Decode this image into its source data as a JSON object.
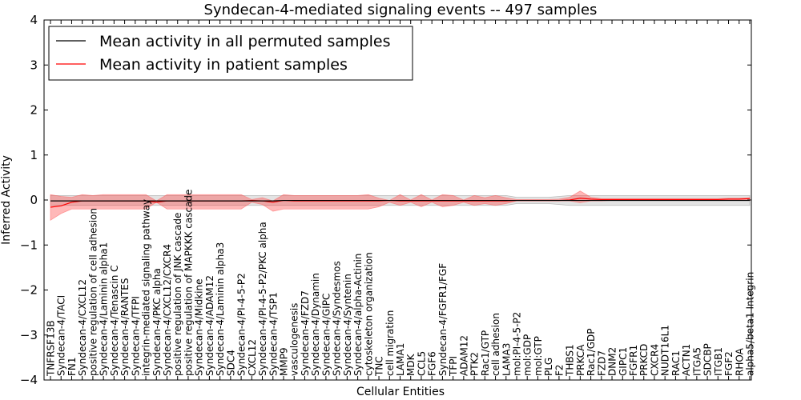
{
  "chart_data": {
    "type": "line",
    "title": "Syndecan-4-mediated signaling events -- 497 samples",
    "xlabel": "Cellular Entities",
    "ylabel": "Inferred Activity",
    "ylim": [
      -4,
      4
    ],
    "yticks": [
      {
        "value": 4,
        "label": "4"
      },
      {
        "value": 3,
        "label": "3"
      },
      {
        "value": 2,
        "label": "2"
      },
      {
        "value": 1,
        "label": "1"
      },
      {
        "value": 0,
        "label": "0"
      },
      {
        "value": -1,
        "label": "−1"
      },
      {
        "value": -2,
        "label": "−2"
      },
      {
        "value": -3,
        "label": "−3"
      },
      {
        "value": -4,
        "label": "−4"
      }
    ],
    "legend": {
      "placement": "top-left",
      "entries": [
        {
          "label": "Mean activity in all permuted samples",
          "color": "#000000"
        },
        {
          "label": "Mean activity in patient samples",
          "color": "#ff0000"
        }
      ]
    },
    "categories": [
      "TNFRSF13B",
      "Syndecan-4/TACI",
      "FN1",
      "Syndecan-4/CXCL12",
      "positive regulation of cell adhesion",
      "Syndecan-4/Laminin alpha1",
      "Syndecan-4/Tenascin C",
      "Syndecan-4/RANTES",
      "Syndecan-4/TFPI",
      "integrin-mediated signaling pathway",
      "Syndecan-4/PKC alpha",
      "Syndecan-4/CXCL12/CXCR4",
      "positive regulation of JNK cascade",
      "positive regulation of MAPKKK cascade",
      "Syndecan-4/Midkine",
      "Syndecan-4/ADAM12",
      "Syndecan-4/Laminin alpha3",
      "SDC4",
      "Syndecan-4/PI-4-5-P2",
      "CXCL12",
      "Syndecan-4/PI-4-5-P2/PKC alpha",
      "Syndecan-4/TSP1",
      "MMP9",
      "vasculogenesis",
      "Syndecan-4/FZD7",
      "Syndecan-4/Dynamin",
      "Syndecan-4/GIPC",
      "Syndecan-4/Syndesmos",
      "Syndecan-4/Syntenin",
      "Syndecan-4/alpha-Actinin",
      "cytoskeleton organization",
      "TNC",
      "cell migration",
      "LAMA1",
      "MDK",
      "CCL5",
      "FGF6",
      "Syndecan-4/FGFR1/FGF",
      "TFPI",
      "ADAM12",
      "PTK2",
      "Rac1/GTP",
      "cell adhesion",
      "LAMA3",
      "mol:PI-4-5-P2",
      "mol:GDP",
      "mol:GTP",
      "PLG",
      "F2",
      "THBS1",
      "PRKCA",
      "Rac1/GDP",
      "FZD7",
      "DNM2",
      "GIPC1",
      "FGFR1",
      "PRKCD",
      "CXCR4",
      "NUDT16L1",
      "RAC1",
      "ACTN1",
      "ITGA5",
      "SDCBP",
      "ITGB1",
      "FGF2",
      "RHOA",
      "alpha5/beta1 Integrin"
    ],
    "series": [
      {
        "name": "Mean activity in all permuted samples",
        "color": "#000000",
        "values": [
          -0.02,
          -0.02,
          -0.02,
          -0.02,
          -0.02,
          -0.02,
          -0.02,
          -0.02,
          -0.02,
          -0.02,
          -0.02,
          -0.02,
          -0.02,
          -0.02,
          -0.02,
          -0.02,
          -0.02,
          -0.02,
          -0.02,
          -0.02,
          -0.02,
          -0.02,
          -0.01,
          -0.01,
          -0.01,
          -0.01,
          -0.01,
          -0.01,
          -0.01,
          -0.01,
          -0.01,
          -0.01,
          -0.01,
          -0.01,
          -0.01,
          -0.01,
          -0.01,
          -0.01,
          -0.01,
          -0.01,
          -0.01,
          -0.01,
          -0.01,
          -0.01,
          -0.01,
          -0.01,
          -0.01,
          -0.01,
          -0.01,
          -0.01,
          -0.01,
          -0.01,
          -0.01,
          -0.01,
          -0.01,
          -0.01,
          -0.01,
          -0.01,
          -0.01,
          -0.01,
          -0.01,
          -0.01,
          -0.01,
          -0.01,
          -0.01,
          -0.01,
          -0.01
        ],
        "band_low": [
          -0.12,
          -0.12,
          -0.12,
          -0.12,
          -0.12,
          -0.12,
          -0.12,
          -0.12,
          -0.12,
          -0.12,
          -0.12,
          -0.12,
          -0.12,
          -0.12,
          -0.12,
          -0.12,
          -0.12,
          -0.12,
          -0.12,
          -0.12,
          -0.12,
          -0.12,
          -0.12,
          -0.12,
          -0.12,
          -0.12,
          -0.12,
          -0.12,
          -0.12,
          -0.12,
          -0.12,
          -0.12,
          -0.12,
          -0.12,
          -0.12,
          -0.12,
          -0.12,
          -0.12,
          -0.12,
          -0.12,
          -0.12,
          -0.12,
          -0.12,
          -0.12,
          -0.08,
          -0.08,
          -0.08,
          -0.08,
          -0.1,
          -0.12,
          -0.12,
          -0.12,
          -0.12,
          -0.12,
          -0.12,
          -0.12,
          -0.12,
          -0.12,
          -0.12,
          -0.12,
          -0.12,
          -0.12,
          -0.12,
          -0.12,
          -0.12,
          -0.12,
          -0.12
        ],
        "band_high": [
          0.1,
          0.1,
          0.1,
          0.1,
          0.1,
          0.1,
          0.1,
          0.1,
          0.1,
          0.1,
          0.1,
          0.1,
          0.1,
          0.1,
          0.1,
          0.1,
          0.1,
          0.1,
          0.1,
          0.1,
          0.1,
          0.1,
          0.1,
          0.1,
          0.1,
          0.1,
          0.1,
          0.1,
          0.1,
          0.1,
          0.1,
          0.1,
          0.1,
          0.1,
          0.1,
          0.1,
          0.1,
          0.1,
          0.1,
          0.1,
          0.1,
          0.1,
          0.1,
          0.1,
          0.06,
          0.06,
          0.06,
          0.06,
          0.08,
          0.1,
          0.1,
          0.1,
          0.1,
          0.1,
          0.1,
          0.1,
          0.1,
          0.1,
          0.1,
          0.1,
          0.1,
          0.1,
          0.1,
          0.1,
          0.1,
          0.1,
          0.1
        ]
      },
      {
        "name": "Mean activity in patient samples",
        "color": "#ff0000",
        "values": [
          -0.16,
          -0.13,
          -0.05,
          -0.02,
          -0.02,
          -0.02,
          -0.02,
          -0.02,
          -0.02,
          -0.02,
          -0.05,
          -0.02,
          -0.02,
          -0.02,
          -0.02,
          -0.02,
          -0.02,
          -0.02,
          -0.02,
          -0.01,
          -0.02,
          -0.05,
          -0.01,
          -0.02,
          -0.02,
          -0.02,
          -0.02,
          -0.02,
          -0.02,
          -0.02,
          -0.02,
          -0.02,
          -0.01,
          -0.02,
          -0.02,
          -0.02,
          -0.02,
          -0.02,
          -0.02,
          -0.02,
          -0.02,
          -0.02,
          -0.02,
          -0.02,
          -0.01,
          -0.01,
          -0.01,
          -0.01,
          -0.01,
          0.0,
          0.04,
          0.02,
          0.01,
          0.01,
          0.01,
          0.01,
          0.01,
          0.01,
          0.01,
          0.01,
          0.01,
          0.01,
          0.01,
          0.01,
          0.02,
          0.02,
          0.03
        ],
        "band_low": [
          -0.45,
          -0.3,
          -0.2,
          -0.2,
          -0.2,
          -0.2,
          -0.2,
          -0.2,
          -0.2,
          -0.2,
          -0.05,
          -0.2,
          -0.2,
          -0.2,
          -0.2,
          -0.2,
          -0.2,
          -0.2,
          -0.2,
          -0.05,
          -0.1,
          -0.25,
          -0.2,
          -0.2,
          -0.2,
          -0.2,
          -0.2,
          -0.2,
          -0.2,
          -0.2,
          -0.2,
          -0.15,
          -0.05,
          -0.12,
          -0.05,
          -0.15,
          -0.05,
          -0.15,
          -0.12,
          -0.05,
          -0.12,
          -0.08,
          -0.12,
          -0.08,
          -0.02,
          -0.02,
          -0.02,
          -0.02,
          -0.02,
          -0.02,
          -0.06,
          -0.02,
          -0.02,
          -0.01,
          -0.01,
          -0.01,
          -0.01,
          -0.01,
          -0.01,
          -0.01,
          -0.01,
          -0.01,
          -0.01,
          -0.01,
          -0.01,
          -0.01,
          -0.01
        ],
        "band_high": [
          0.12,
          0.08,
          0.06,
          0.12,
          0.1,
          0.12,
          0.12,
          0.12,
          0.12,
          0.12,
          -0.02,
          0.12,
          0.12,
          0.12,
          0.12,
          0.12,
          0.12,
          0.12,
          0.12,
          0.01,
          0.05,
          -0.02,
          0.12,
          0.1,
          0.1,
          0.1,
          0.1,
          0.1,
          0.1,
          0.1,
          0.12,
          0.04,
          -0.01,
          0.12,
          0.0,
          0.12,
          0.0,
          0.12,
          0.1,
          0.0,
          0.1,
          0.05,
          0.1,
          0.05,
          0.01,
          0.01,
          0.01,
          0.01,
          0.02,
          0.06,
          0.2,
          0.06,
          0.03,
          0.03,
          0.03,
          0.03,
          0.03,
          0.03,
          0.03,
          0.03,
          0.03,
          0.03,
          0.03,
          0.03,
          0.04,
          0.04,
          0.05
        ]
      }
    ]
  }
}
